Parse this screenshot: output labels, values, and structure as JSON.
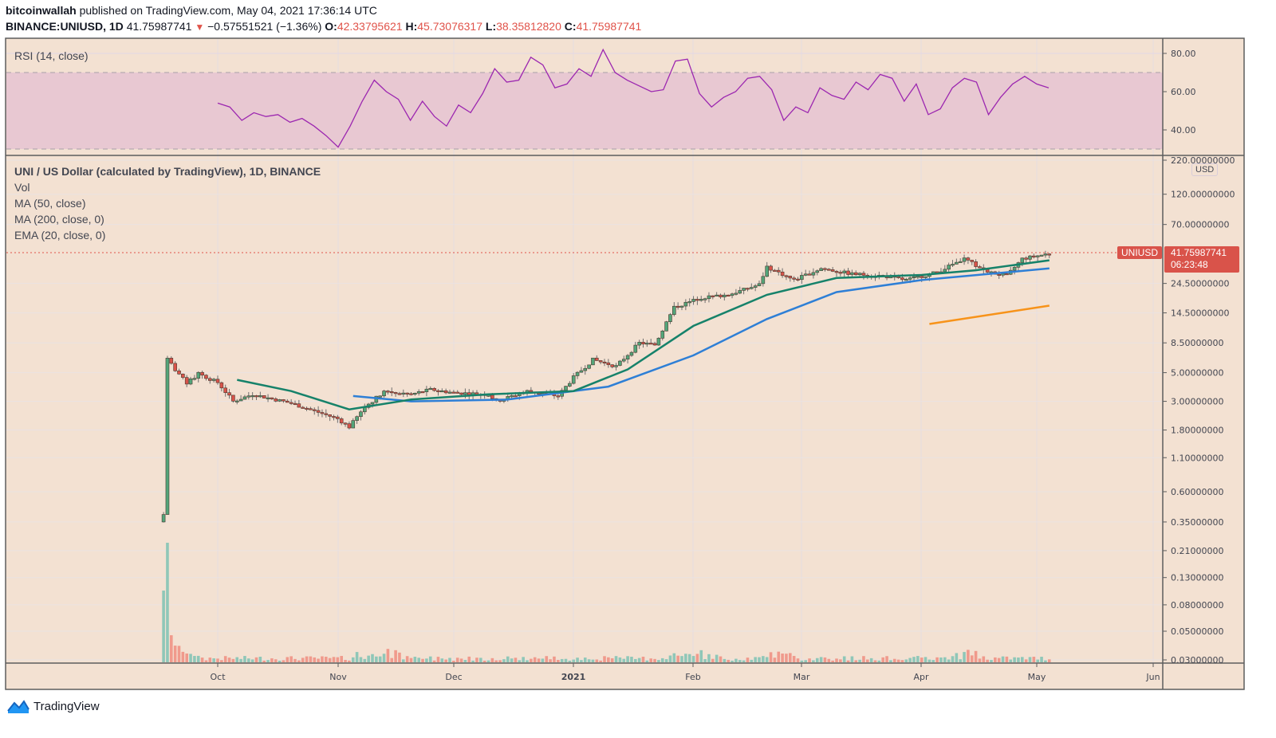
{
  "header": {
    "author": "bitcoinwallah",
    "published_text": " published on TradingView.com, May 04, 2021 17:36:14 UTC",
    "symbol": "BINANCE:UNIUSD, 1D",
    "last_price": "41.75987741",
    "change": "−0.57551521 (−1.36%)",
    "open_label": "O:",
    "open": "42.33795621",
    "high_label": "H:",
    "high": "45.73076317",
    "low_label": "L:",
    "low": "38.35812820",
    "close_label": "C:",
    "close": "41.75987741"
  },
  "rsi_pane": {
    "title": "RSI (14, close)",
    "ticks": [
      "80.00",
      "60.00",
      "40.00"
    ]
  },
  "price_pane": {
    "title": "UNI / US Dollar (calculated by TradingView), 1D, BINANCE",
    "indicators": [
      "Vol",
      "MA (50, close)",
      "MA (200, close, 0)",
      "EMA (20, close, 0)"
    ],
    "currency_badge": "USD",
    "pair_tag": "UNIUSD",
    "price_tag": "41.75987741",
    "countdown": "06:23:48",
    "ticks": [
      "220.00000000",
      "120.00000000",
      "70.00000000",
      "24.50000000",
      "14.50000000",
      "8.50000000",
      "5.00000000",
      "3.00000000",
      "1.80000000",
      "1.10000000",
      "0.60000000",
      "0.35000000",
      "0.21000000",
      "0.13000000",
      "0.08000000",
      "0.05000000",
      "0.03000000"
    ]
  },
  "time_axis": [
    "Oct",
    "Nov",
    "Dec",
    "2021",
    "Feb",
    "Mar",
    "Apr",
    "May",
    "Jun"
  ],
  "footer": {
    "brand": "TradingView"
  },
  "colors": {
    "background": "#f3e1d2",
    "rsi_band": "#e8c8d2",
    "rsi_line": "#9c27b0",
    "up": "#53a57a",
    "down": "#d9534a",
    "vol_up": "#8fc7b8",
    "vol_down": "#f09a8c",
    "ema20": "#16826a",
    "ma50": "#2e7fd6",
    "ma200": "#f7931a",
    "last_price_line": "#e0534a"
  },
  "chart_data": {
    "type": "candlestick",
    "title": "UNI / US Dollar (calculated by TradingView), 1D, BINANCE",
    "scale": "log",
    "ylim": [
      0.03,
      220
    ],
    "x_ticks": [
      "Oct",
      "Nov",
      "Dec",
      "2021",
      "Feb",
      "Mar",
      "Apr",
      "May",
      "Jun"
    ],
    "y_ticks": [
      220,
      120,
      70,
      24.5,
      14.5,
      8.5,
      5,
      3,
      1.8,
      1.1,
      0.6,
      0.35,
      0.21,
      0.13,
      0.08,
      0.05,
      0.03
    ],
    "last": {
      "open": 42.33795621,
      "high": 45.73076317,
      "low": 38.3581282,
      "close": 41.75987741,
      "change": -0.57551521,
      "change_pct": -1.36
    },
    "price_path": [
      {
        "date": "2020-09-17",
        "close": 0.4
      },
      {
        "date": "2020-09-18",
        "close": 6.5
      },
      {
        "date": "2020-09-20",
        "close": 5.3
      },
      {
        "date": "2020-09-23",
        "close": 4.1
      },
      {
        "date": "2020-09-26",
        "close": 4.9
      },
      {
        "date": "2020-10-01",
        "close": 4.2
      },
      {
        "date": "2020-10-05",
        "close": 3.0
      },
      {
        "date": "2020-10-10",
        "close": 3.4
      },
      {
        "date": "2020-10-20",
        "close": 2.9
      },
      {
        "date": "2020-11-01",
        "close": 2.2
      },
      {
        "date": "2020-11-04",
        "close": 1.9
      },
      {
        "date": "2020-11-08",
        "close": 2.7
      },
      {
        "date": "2020-11-13",
        "close": 3.6
      },
      {
        "date": "2020-11-20",
        "close": 3.4
      },
      {
        "date": "2020-11-25",
        "close": 3.7
      },
      {
        "date": "2020-12-01",
        "close": 3.5
      },
      {
        "date": "2020-12-10",
        "close": 3.4
      },
      {
        "date": "2020-12-12",
        "close": 3.0
      },
      {
        "date": "2020-12-20",
        "close": 3.6
      },
      {
        "date": "2020-12-28",
        "close": 3.3
      },
      {
        "date": "2021-01-01",
        "close": 4.6
      },
      {
        "date": "2021-01-06",
        "close": 6.3
      },
      {
        "date": "2021-01-12",
        "close": 5.6
      },
      {
        "date": "2021-01-18",
        "close": 8.5
      },
      {
        "date": "2021-01-22",
        "close": 8.2
      },
      {
        "date": "2021-01-27",
        "close": 16.0
      },
      {
        "date": "2021-02-03",
        "close": 19.0
      },
      {
        "date": "2021-02-10",
        "close": 20.0
      },
      {
        "date": "2021-02-18",
        "close": 24.0
      },
      {
        "date": "2021-02-20",
        "close": 33.0
      },
      {
        "date": "2021-02-27",
        "close": 26.0
      },
      {
        "date": "2021-03-06",
        "close": 32.0
      },
      {
        "date": "2021-03-14",
        "close": 29.0
      },
      {
        "date": "2021-03-22",
        "close": 28.0
      },
      {
        "date": "2021-03-28",
        "close": 26.0
      },
      {
        "date": "2021-04-05",
        "close": 30.0
      },
      {
        "date": "2021-04-12",
        "close": 38.0
      },
      {
        "date": "2021-04-18",
        "close": 30.0
      },
      {
        "date": "2021-04-23",
        "close": 28.0
      },
      {
        "date": "2021-04-27",
        "close": 38.0
      },
      {
        "date": "2021-05-04",
        "close": 41.76
      }
    ],
    "series": [
      {
        "name": "EMA (20, close, 0)",
        "color": "#16826a",
        "points": [
          {
            "date": "2020-10-06",
            "value": 4.4
          },
          {
            "date": "2020-10-20",
            "value": 3.6
          },
          {
            "date": "2020-11-04",
            "value": 2.6
          },
          {
            "date": "2020-11-20",
            "value": 3.1
          },
          {
            "date": "2020-12-10",
            "value": 3.4
          },
          {
            "date": "2021-01-01",
            "value": 3.6
          },
          {
            "date": "2021-01-15",
            "value": 5.3
          },
          {
            "date": "2021-02-01",
            "value": 11.5
          },
          {
            "date": "2021-02-20",
            "value": 20
          },
          {
            "date": "2021-03-10",
            "value": 27
          },
          {
            "date": "2021-04-01",
            "value": 28.5
          },
          {
            "date": "2021-04-15",
            "value": 31
          },
          {
            "date": "2021-05-04",
            "value": 37
          }
        ]
      },
      {
        "name": "MA (50, close)",
        "color": "#2e7fd6",
        "points": [
          {
            "date": "2020-11-05",
            "value": 3.3
          },
          {
            "date": "2020-11-20",
            "value": 3.0
          },
          {
            "date": "2020-12-15",
            "value": 3.1
          },
          {
            "date": "2021-01-10",
            "value": 3.9
          },
          {
            "date": "2021-02-01",
            "value": 6.8
          },
          {
            "date": "2021-02-20",
            "value": 13
          },
          {
            "date": "2021-03-10",
            "value": 21
          },
          {
            "date": "2021-04-01",
            "value": 26
          },
          {
            "date": "2021-05-04",
            "value": 32
          }
        ]
      },
      {
        "name": "MA (200, close, 0)",
        "color": "#f7931a",
        "points": [
          {
            "date": "2021-04-03",
            "value": 11.9
          },
          {
            "date": "2021-05-04",
            "value": 16.5
          }
        ]
      }
    ],
    "rsi": {
      "name": "RSI (14, close)",
      "ylim": [
        25,
        85
      ],
      "bands": [
        30,
        70
      ],
      "values_sample": [
        54,
        52,
        45,
        49,
        47,
        48,
        44,
        46,
        42,
        37,
        31,
        42,
        55,
        66,
        60,
        56,
        45,
        55,
        47,
        42,
        53,
        49,
        59,
        72,
        65,
        66,
        78,
        74,
        62,
        64,
        72,
        68,
        82,
        70,
        66,
        63,
        60,
        61,
        76,
        77,
        59,
        52,
        57,
        60,
        67,
        68,
        61,
        45,
        52,
        49,
        62,
        58,
        56,
        65,
        61,
        69,
        67,
        55,
        64,
        48,
        51,
        62,
        67,
        65,
        48,
        57,
        64,
        68,
        64,
        62
      ]
    },
    "volume": {
      "note": "Large spike at listing (Sep 17-18, 2020), then low steady volume with small bursts early Nov 2020, late Jan 2021, late Feb 2021 and mid Apr 2021"
    }
  }
}
